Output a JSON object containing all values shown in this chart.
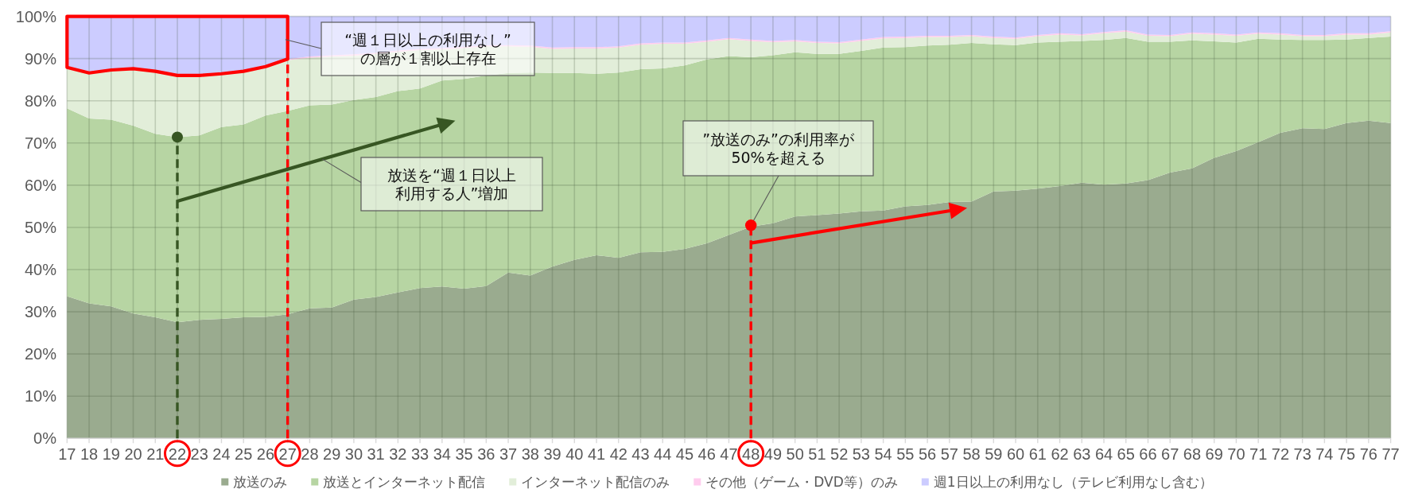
{
  "chart_data": {
    "type": "area",
    "stacked": true,
    "x": [
      17,
      18,
      19,
      20,
      21,
      22,
      23,
      24,
      25,
      26,
      27,
      28,
      29,
      30,
      31,
      32,
      33,
      34,
      35,
      36,
      37,
      38,
      39,
      40,
      41,
      42,
      43,
      44,
      45,
      46,
      47,
      48,
      49,
      50,
      51,
      52,
      53,
      54,
      55,
      56,
      57,
      58,
      59,
      60,
      61,
      62,
      63,
      64,
      65,
      66,
      67,
      68,
      69,
      70,
      71,
      72,
      73,
      74,
      75,
      76,
      77
    ],
    "xlim": [
      17,
      77
    ],
    "xticks": [
      17,
      18,
      19,
      20,
      21,
      22,
      23,
      24,
      25,
      26,
      27,
      28,
      29,
      30,
      31,
      32,
      33,
      34,
      35,
      36,
      37,
      38,
      39,
      40,
      41,
      42,
      43,
      44,
      45,
      46,
      47,
      48,
      49,
      50,
      51,
      52,
      53,
      54,
      55,
      56,
      57,
      58,
      59,
      60,
      61,
      62,
      63,
      64,
      65,
      66,
      67,
      68,
      69,
      70,
      71,
      72,
      73,
      74,
      75,
      76,
      77
    ],
    "ylim": [
      0,
      100
    ],
    "yticks": [
      {
        "value": 0,
        "label": "0%"
      },
      {
        "value": 10,
        "label": "10%"
      },
      {
        "value": 20,
        "label": "20%"
      },
      {
        "value": 30,
        "label": "30%"
      },
      {
        "value": 40,
        "label": "40%"
      },
      {
        "value": 50,
        "label": "50%"
      },
      {
        "value": 60,
        "label": "60%"
      },
      {
        "value": 70,
        "label": "70%"
      },
      {
        "value": 80,
        "label": "80%"
      },
      {
        "value": 90,
        "label": "90%"
      },
      {
        "value": 100,
        "label": "100%"
      }
    ],
    "grid": true,
    "legend": "bottom",
    "series": [
      {
        "name": "放送のみ",
        "color": "#9aab8f",
        "values": [
          33.7,
          32.0,
          31.3,
          29.6,
          28.7,
          27.5,
          28.1,
          28.3,
          28.7,
          28.8,
          29.4,
          30.8,
          31.0,
          32.9,
          33.5,
          34.6,
          35.6,
          36.0,
          35.5,
          36.1,
          39.3,
          38.6,
          40.7,
          42.3,
          43.4,
          42.8,
          44.1,
          44.2,
          44.9,
          46.2,
          48.2,
          50.2,
          51.0,
          52.6,
          52.9,
          53.3,
          53.8,
          54.0,
          55.0,
          55.3,
          56.0,
          56.1,
          58.5,
          58.7,
          59.2,
          59.8,
          60.6,
          60.1,
          60.4,
          61.2,
          63.0,
          64.0,
          66.5,
          68.1,
          70.2,
          72.4,
          73.5,
          73.3,
          74.7,
          75.3,
          74.7
        ]
      },
      {
        "name": "放送とインターネット配信",
        "color": "#b7d5a3",
        "values": [
          44.5,
          43.8,
          44.2,
          44.5,
          43.5,
          43.9,
          43.7,
          45.5,
          45.7,
          47.7,
          48.2,
          48.1,
          48.1,
          47.3,
          47.4,
          47.7,
          47.3,
          48.8,
          49.7,
          49.9,
          47.3,
          48.1,
          45.9,
          44.3,
          43.0,
          43.9,
          43.4,
          43.5,
          43.5,
          43.6,
          42.4,
          40.1,
          39.8,
          38.9,
          38.2,
          37.8,
          38.0,
          38.6,
          37.7,
          37.8,
          37.3,
          37.6,
          34.9,
          34.5,
          34.6,
          34.2,
          33.6,
          34.3,
          34.5,
          32.8,
          31.0,
          30.3,
          27.6,
          25.7,
          24.5,
          22.1,
          20.9,
          21.1,
          19.8,
          19.6,
          20.5
        ]
      },
      {
        "name": "インターネット配信のみ",
        "color": "#e2eed9",
        "values": [
          9.4,
          10.5,
          11.5,
          13.2,
          14.5,
          14.3,
          13.9,
          12.3,
          12.3,
          11.3,
          12.0,
          11.3,
          11.4,
          10.5,
          10.2,
          9.3,
          9.1,
          7.4,
          7.3,
          6.9,
          6.3,
          6.1,
          5.7,
          5.8,
          6.0,
          5.9,
          5.8,
          5.8,
          5.1,
          4.2,
          4.0,
          3.9,
          3.1,
          2.6,
          2.6,
          2.5,
          2.4,
          2.2,
          2.2,
          2.0,
          1.8,
          1.6,
          1.5,
          1.5,
          1.5,
          1.7,
          1.3,
          1.6,
          1.5,
          1.4,
          1.3,
          1.6,
          1.6,
          1.6,
          1.2,
          1.2,
          0.9,
          0.9,
          1.2,
          0.8,
          1.0
        ]
      },
      {
        "name": "その他（ゲーム・DVD等）のみ",
        "color": "#ffccee",
        "values": [
          0.3,
          0.3,
          0.3,
          0.3,
          0.3,
          0.3,
          0.3,
          0.3,
          0.3,
          0.3,
          0.3,
          0.3,
          0.3,
          0.3,
          0.3,
          0.3,
          0.3,
          0.3,
          0.3,
          0.3,
          0.3,
          0.3,
          0.3,
          0.3,
          0.3,
          0.3,
          0.3,
          0.3,
          0.3,
          0.3,
          0.3,
          0.3,
          0.3,
          0.3,
          0.3,
          0.3,
          0.3,
          0.3,
          0.3,
          0.3,
          0.3,
          0.3,
          0.3,
          0.3,
          0.3,
          0.3,
          0.3,
          0.3,
          0.3,
          0.3,
          0.3,
          0.3,
          0.3,
          0.3,
          0.3,
          0.3,
          0.3,
          0.3,
          0.3,
          0.3,
          0.3
        ]
      },
      {
        "name": "週1日以上の利用なし（テレビ利用なし含む）",
        "color": "#ccccff",
        "values": [
          12.1,
          13.4,
          12.7,
          12.4,
          13.0,
          14.0,
          14.0,
          13.6,
          13.0,
          11.9,
          10.1,
          9.5,
          9.2,
          9.0,
          8.6,
          8.1,
          7.7,
          7.5,
          7.2,
          6.8,
          6.8,
          6.9,
          7.4,
          7.3,
          7.3,
          7.1,
          6.4,
          6.2,
          6.2,
          5.7,
          5.1,
          5.5,
          5.8,
          5.6,
          6.0,
          6.1,
          5.5,
          4.9,
          4.8,
          4.6,
          4.6,
          4.4,
          4.8,
          5.0,
          4.4,
          4.0,
          4.2,
          3.7,
          3.3,
          4.3,
          4.4,
          3.8,
          4.0,
          4.3,
          3.8,
          4.0,
          4.4,
          4.4,
          4.0,
          4.0,
          3.5
        ]
      }
    ],
    "ref_lines": [
      {
        "axis": "x",
        "value": 22,
        "color": "#375623",
        "line_style": "dashed"
      },
      {
        "axis": "x",
        "value": 27,
        "color": "#ff0000",
        "line_style": "dashed"
      },
      {
        "axis": "x",
        "value": 48,
        "color": "#ff0000",
        "line_style": "dashed"
      }
    ],
    "annotations": [
      "“週１日以上の利用なし”の層が１割以上存在",
      "放送を“週１日以上利用する人”増加",
      {
        "text": "”放送のみ”の利用率が50%を超える",
        "x": 48,
        "y": 50.5
      }
    ]
  }
}
